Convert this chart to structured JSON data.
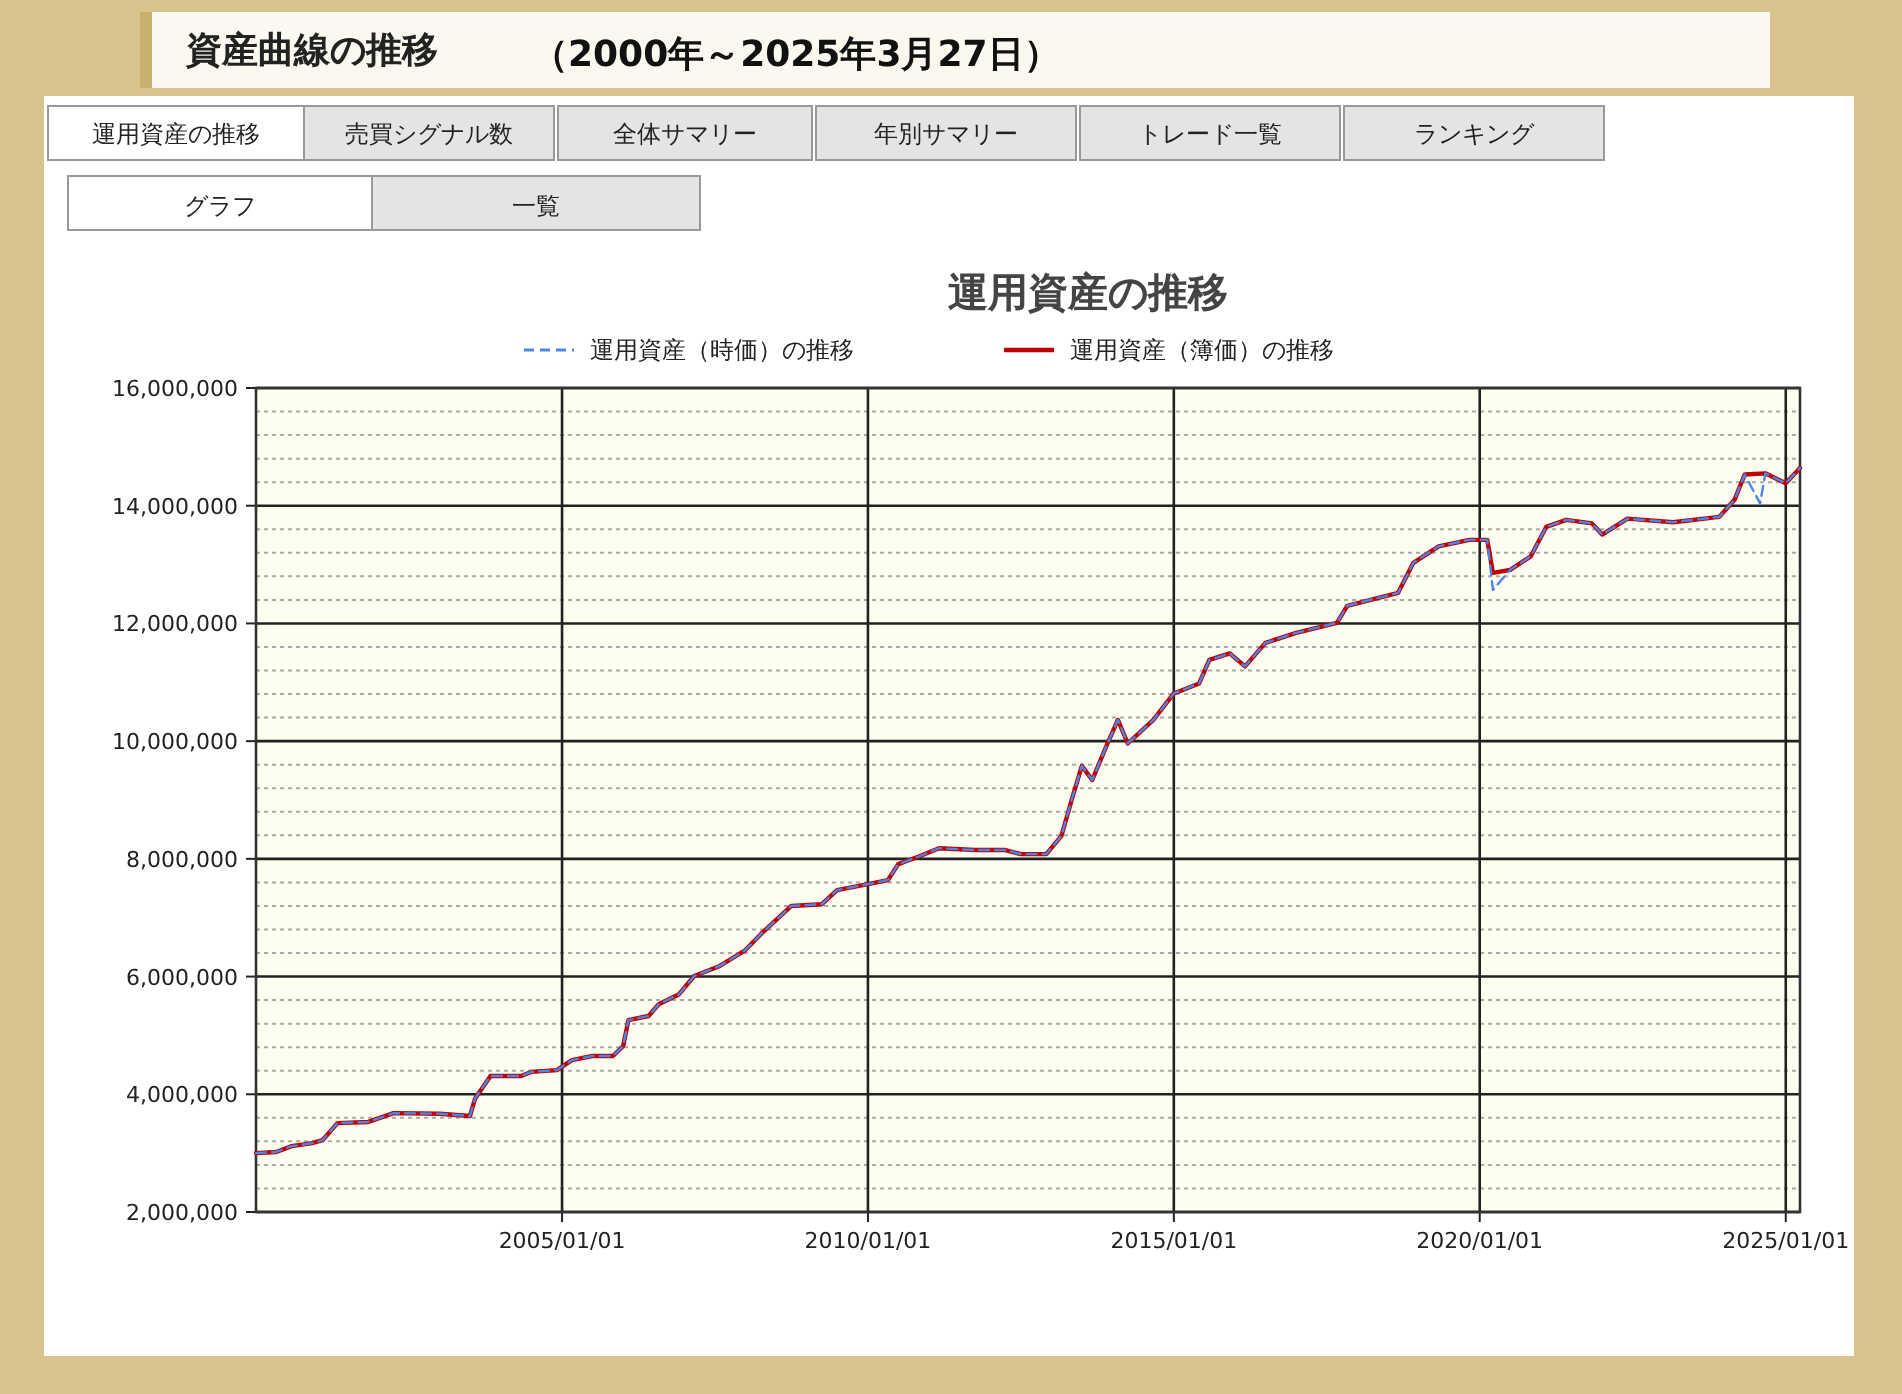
{
  "chart_data": {
    "type": "line",
    "title": "運用資産の推移",
    "annotations": [
      "資産曲線の推移",
      "（2000年～2025年3月27日）",
      "運用資産の推移",
      "売買シグナル数",
      "全体サマリー",
      "年別サマリー",
      "トレード一覧",
      "ランキング",
      "グラフ",
      "一覧"
    ],
    "xlim": [
      "2000-01-01",
      "2025-03-27"
    ],
    "xticks": [
      {
        "value": "2005-01-01",
        "label": "2005/01/01"
      },
      {
        "value": "2010-01-01",
        "label": "2010/01/01"
      },
      {
        "value": "2015-01-01",
        "label": "2015/01/01"
      },
      {
        "value": "2020-01-01",
        "label": "2020/01/01"
      },
      {
        "value": "2025-01-01",
        "label": "2025/01/01"
      }
    ],
    "ylim": [
      2000000,
      16000000
    ],
    "yticks": [
      {
        "value": 2000000,
        "label": "2,000,000"
      },
      {
        "value": 2400000,
        "label": null
      },
      {
        "value": 2800000,
        "label": null
      },
      {
        "value": 3200000,
        "label": null
      },
      {
        "value": 3600000,
        "label": null
      },
      {
        "value": 4000000,
        "label": "4,000,000"
      },
      {
        "value": 4400000,
        "label": null
      },
      {
        "value": 4800000,
        "label": null
      },
      {
        "value": 5200000,
        "label": null
      },
      {
        "value": 5600000,
        "label": null
      },
      {
        "value": 6000000,
        "label": "6,000,000"
      },
      {
        "value": 6400000,
        "label": null
      },
      {
        "value": 6800000,
        "label": null
      },
      {
        "value": 7200000,
        "label": null
      },
      {
        "value": 7600000,
        "label": null
      },
      {
        "value": 8000000,
        "label": "8,000,000"
      },
      {
        "value": 8400000,
        "label": null
      },
      {
        "value": 8800000,
        "label": null
      },
      {
        "value": 9200000,
        "label": null
      },
      {
        "value": 9600000,
        "label": null
      },
      {
        "value": 10000000,
        "label": "10,000,000"
      },
      {
        "value": 10400000,
        "label": null
      },
      {
        "value": 10800000,
        "label": null
      },
      {
        "value": 11200000,
        "label": null
      },
      {
        "value": 11600000,
        "label": null
      },
      {
        "value": 12000000,
        "label": "12,000,000"
      },
      {
        "value": 12400000,
        "label": null
      },
      {
        "value": 12800000,
        "label": null
      },
      {
        "value": 13200000,
        "label": null
      },
      {
        "value": 13600000,
        "label": null
      },
      {
        "value": 14000000,
        "label": "14,000,000"
      },
      {
        "value": 14400000,
        "label": null
      },
      {
        "value": 14800000,
        "label": null
      },
      {
        "value": 15200000,
        "label": null
      },
      {
        "value": 15600000,
        "label": null
      },
      {
        "value": 16000000,
        "label": "16,000,000"
      }
    ],
    "grid": true,
    "legend": "top",
    "series": [
      {
        "name": "運用資産（時価）の推移",
        "color": "#4a86e8",
        "line_style": "dashed",
        "x": [
          "2000-01-01",
          "2000-05-01",
          "2000-08-01",
          "2000-12-01",
          "2001-02-01",
          "2001-05-01",
          "2001-11-01",
          "2002-04-01",
          "2003-01-01",
          "2003-07-01",
          "2003-08-01",
          "2003-11-01",
          "2004-05-01",
          "2004-07-01",
          "2004-12-01",
          "2005-03-01",
          "2005-07-01",
          "2005-11-01",
          "2006-01-01",
          "2006-02-01",
          "2006-06-01",
          "2006-08-01",
          "2006-12-01",
          "2007-03-01",
          "2007-08-01",
          "2008-01-01",
          "2008-04-01",
          "2008-10-01",
          "2009-04-01",
          "2009-07-01",
          "2010-01-01",
          "2010-05-01",
          "2010-07-01",
          "2010-11-01",
          "2011-03-01",
          "2011-10-01",
          "2012-04-01",
          "2012-07-01",
          "2012-12-01",
          "2013-03-01",
          "2013-05-01",
          "2013-07-01",
          "2013-09-01",
          "2013-12-01",
          "2014-02-01",
          "2014-04-01",
          "2014-09-01",
          "2015-01-01",
          "2015-06-01",
          "2015-08-01",
          "2015-12-01",
          "2016-03-01",
          "2016-07-01",
          "2017-01-01",
          "2017-09-01",
          "2017-11-01",
          "2018-09-01",
          "2018-12-01",
          "2019-05-01",
          "2019-11-01",
          "2020-02-15",
          "2020-03-20",
          "2020-07-01",
          "2020-11-01",
          "2021-02-01",
          "2021-06-01",
          "2021-11-01",
          "2022-01-01",
          "2022-06-01",
          "2023-03-01",
          "2023-12-01",
          "2024-03-01",
          "2024-05-01",
          "2024-08-01",
          "2024-09-01",
          "2025-01-01",
          "2025-03-27"
        ],
        "values": [
          3000000,
          3020000,
          3120000,
          3170000,
          3220000,
          3510000,
          3530000,
          3680000,
          3670000,
          3630000,
          3930000,
          4310000,
          4310000,
          4380000,
          4410000,
          4580000,
          4650000,
          4650000,
          4820000,
          5260000,
          5330000,
          5530000,
          5700000,
          6010000,
          6180000,
          6450000,
          6720000,
          7200000,
          7230000,
          7470000,
          7570000,
          7640000,
          7910000,
          8040000,
          8180000,
          8150000,
          8150000,
          8080000,
          8080000,
          8390000,
          9000000,
          9580000,
          9340000,
          9960000,
          10360000,
          9960000,
          10360000,
          10810000,
          10980000,
          11380000,
          11490000,
          11270000,
          11670000,
          11840000,
          12010000,
          12300000,
          12520000,
          13030000,
          13310000,
          13420000,
          13420000,
          12570000,
          12910000,
          13140000,
          13640000,
          13760000,
          13700000,
          13510000,
          13780000,
          13720000,
          13810000,
          14100000,
          14530000,
          14040000,
          14550000,
          14380000,
          14640000
        ]
      },
      {
        "name": "運用資産（簿価）の推移",
        "color": "#c00000",
        "line_style": "solid",
        "x": [
          "2000-01-01",
          "2000-05-01",
          "2000-08-01",
          "2000-12-01",
          "2001-02-01",
          "2001-05-01",
          "2001-11-01",
          "2002-04-01",
          "2003-01-01",
          "2003-07-01",
          "2003-08-01",
          "2003-11-01",
          "2004-05-01",
          "2004-07-01",
          "2004-12-01",
          "2005-03-01",
          "2005-07-01",
          "2005-11-01",
          "2006-01-01",
          "2006-02-01",
          "2006-06-01",
          "2006-08-01",
          "2006-12-01",
          "2007-03-01",
          "2007-08-01",
          "2008-01-01",
          "2008-04-01",
          "2008-10-01",
          "2009-04-01",
          "2009-07-01",
          "2010-01-01",
          "2010-05-01",
          "2010-07-01",
          "2010-11-01",
          "2011-03-01",
          "2011-10-01",
          "2012-04-01",
          "2012-07-01",
          "2012-12-01",
          "2013-03-01",
          "2013-05-01",
          "2013-07-01",
          "2013-09-01",
          "2013-12-01",
          "2014-02-01",
          "2014-04-01",
          "2014-09-01",
          "2015-01-01",
          "2015-06-01",
          "2015-08-01",
          "2015-12-01",
          "2016-03-01",
          "2016-07-01",
          "2017-01-01",
          "2017-09-01",
          "2017-11-01",
          "2018-09-01",
          "2018-12-01",
          "2019-05-01",
          "2019-11-01",
          "2020-02-15",
          "2020-03-20",
          "2020-07-01",
          "2020-11-01",
          "2021-02-01",
          "2021-06-01",
          "2021-11-01",
          "2022-01-01",
          "2022-06-01",
          "2023-03-01",
          "2023-12-01",
          "2024-03-01",
          "2024-05-01",
          "2024-09-01",
          "2025-01-01",
          "2025-03-27"
        ],
        "values": [
          3000000,
          3020000,
          3120000,
          3170000,
          3220000,
          3510000,
          3530000,
          3680000,
          3670000,
          3630000,
          3930000,
          4310000,
          4310000,
          4380000,
          4410000,
          4580000,
          4650000,
          4650000,
          4820000,
          5260000,
          5330000,
          5530000,
          5700000,
          6010000,
          6180000,
          6450000,
          6720000,
          7200000,
          7230000,
          7470000,
          7570000,
          7640000,
          7910000,
          8040000,
          8180000,
          8150000,
          8150000,
          8080000,
          8080000,
          8390000,
          9000000,
          9580000,
          9340000,
          9960000,
          10360000,
          9960000,
          10360000,
          10810000,
          10980000,
          11380000,
          11490000,
          11270000,
          11670000,
          11840000,
          12010000,
          12300000,
          12520000,
          13030000,
          13310000,
          13420000,
          13420000,
          12860000,
          12910000,
          13140000,
          13640000,
          13760000,
          13700000,
          13510000,
          13780000,
          13720000,
          13810000,
          14100000,
          14530000,
          14550000,
          14380000,
          14640000
        ]
      }
    ]
  }
}
